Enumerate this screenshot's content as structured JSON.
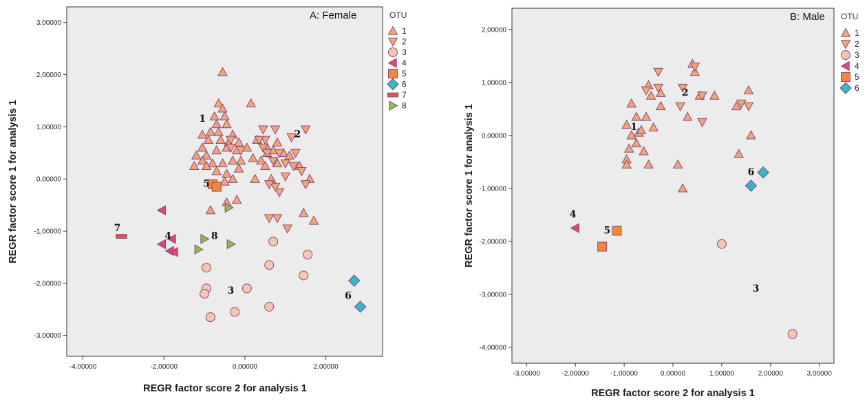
{
  "chart_data": [
    {
      "type": "scatter",
      "title": "A:  Female",
      "xlabel": "REGR factor score  2 for analysis 1",
      "ylabel": "REGR factor score  1 for analysis 1",
      "xlim": [
        -4.4,
        3.4
      ],
      "ylim": [
        -3.4,
        3.3
      ],
      "xticks": [
        "-4,00000",
        "-2,00000",
        "0,00000",
        "2,00000"
      ],
      "xtick_values": [
        -4,
        -2,
        0,
        2
      ],
      "yticks": [
        "3,00000",
        "2,00000",
        "1,00000",
        "0,00000",
        "-1,00000",
        "-2,00000",
        "-3,00000"
      ],
      "ytick_values": [
        3,
        2,
        1,
        0,
        -1,
        -2,
        -3
      ],
      "grid": false,
      "legend_title": "OTU",
      "legend_position": "right",
      "series": [
        {
          "name": "1",
          "marker": "triangle-up",
          "color": "#f0a67a",
          "points": [
            [
              -0.55,
              2.05
            ],
            [
              -0.65,
              1.45
            ],
            [
              -0.55,
              1.35
            ],
            [
              -0.75,
              1.2
            ],
            [
              -0.5,
              1.2
            ],
            [
              -0.7,
              1.05
            ],
            [
              -0.45,
              1.05
            ],
            [
              -1.05,
              0.85
            ],
            [
              -0.85,
              0.9
            ],
            [
              -0.65,
              0.9
            ],
            [
              -0.3,
              0.85
            ],
            [
              -1.05,
              0.6
            ],
            [
              -0.9,
              0.75
            ],
            [
              -0.6,
              0.75
            ],
            [
              -0.4,
              0.7
            ],
            [
              -0.15,
              0.7
            ],
            [
              -1.2,
              0.45
            ],
            [
              -0.95,
              0.45
            ],
            [
              -0.7,
              0.55
            ],
            [
              -0.45,
              0.6
            ],
            [
              -0.2,
              0.55
            ],
            [
              0.05,
              0.6
            ],
            [
              -1.05,
              0.35
            ],
            [
              -0.8,
              0.3
            ],
            [
              -0.55,
              0.3
            ],
            [
              -0.3,
              0.35
            ],
            [
              -0.1,
              0.35
            ],
            [
              0.2,
              0.4
            ],
            [
              -1.25,
              0.25
            ],
            [
              -0.95,
              0.25
            ],
            [
              -0.7,
              0.15
            ],
            [
              -0.45,
              0.1
            ],
            [
              -0.15,
              0.2
            ],
            [
              -0.75,
              -0.1
            ],
            [
              -0.5,
              -0.05
            ],
            [
              -0.3,
              0.0
            ],
            [
              0.15,
              1.45
            ],
            [
              0.3,
              0.75
            ],
            [
              0.55,
              0.6
            ],
            [
              0.4,
              0.35
            ],
            [
              0.7,
              0.55
            ],
            [
              0.95,
              0.5
            ],
            [
              1.1,
              0.45
            ],
            [
              0.25,
              0.0
            ],
            [
              0.5,
              0.25
            ],
            [
              1.35,
              0.25
            ],
            [
              0.8,
              0.3
            ],
            [
              1.6,
              0.0
            ],
            [
              0.65,
              0.0
            ],
            [
              -0.2,
              -0.4
            ],
            [
              -0.45,
              -0.45
            ],
            [
              -0.85,
              -0.6
            ],
            [
              1.45,
              -0.65
            ],
            [
              1.7,
              -0.8
            ],
            [
              0.8,
              0.7
            ],
            [
              0.55,
              0.5
            ]
          ]
        },
        {
          "name": "2",
          "marker": "triangle-down",
          "color": "#f0a67a",
          "points": [
            [
              0.45,
              0.95
            ],
            [
              0.75,
              0.95
            ],
            [
              1.5,
              0.95
            ],
            [
              0.5,
              0.75
            ],
            [
              0.35,
              0.75
            ],
            [
              1.15,
              0.8
            ],
            [
              0.85,
              0.5
            ],
            [
              1.25,
              0.5
            ],
            [
              0.45,
              0.6
            ],
            [
              0.7,
              0.35
            ],
            [
              1.0,
              0.3
            ],
            [
              1.2,
              0.25
            ],
            [
              1.4,
              0.15
            ],
            [
              0.55,
              0.5
            ],
            [
              -0.1,
              0.55
            ],
            [
              -0.35,
              0.75
            ],
            [
              0.85,
              -0.25
            ],
            [
              0.75,
              -0.15
            ],
            [
              1.5,
              -0.1
            ],
            [
              1.0,
              0.05
            ],
            [
              0.6,
              -0.1
            ],
            [
              0.6,
              -0.75
            ],
            [
              0.8,
              -0.75
            ],
            [
              1.05,
              -0.95
            ],
            [
              -0.35,
              0.6
            ]
          ]
        },
        {
          "name": "3",
          "marker": "circle",
          "color": "#f2c7b4",
          "points": [
            [
              0.7,
              -1.2
            ],
            [
              1.55,
              -1.45
            ],
            [
              -0.95,
              -1.7
            ],
            [
              0.6,
              -1.65
            ],
            [
              1.45,
              -1.85
            ],
            [
              -0.95,
              -2.1
            ],
            [
              0.05,
              -2.1
            ],
            [
              -1.0,
              -2.2
            ],
            [
              0.6,
              -2.45
            ],
            [
              -0.25,
              -2.55
            ],
            [
              -0.85,
              -2.65
            ]
          ]
        },
        {
          "name": "4",
          "marker": "triangle-left",
          "color": "#e0457a",
          "points": [
            [
              -2.05,
              -0.6
            ],
            [
              -1.8,
              -1.15
            ],
            [
              -2.05,
              -1.25
            ],
            [
              -1.85,
              -1.38
            ],
            [
              -1.75,
              -1.4
            ]
          ]
        },
        {
          "name": "5",
          "marker": "square",
          "color": "#f5873a",
          "points": [
            [
              -0.8,
              -0.1
            ],
            [
              -0.7,
              -0.15
            ]
          ]
        },
        {
          "name": "6",
          "marker": "diamond",
          "color": "#35b7c8",
          "points": [
            [
              2.7,
              -1.95
            ],
            [
              2.85,
              -2.45
            ]
          ]
        },
        {
          "name": "7",
          "marker": "bar",
          "color": "#e04f5e",
          "points": [
            [
              -3.05,
              -1.1
            ]
          ]
        },
        {
          "name": "8",
          "marker": "triangle-right",
          "color": "#8cbf4a",
          "points": [
            [
              -0.4,
              -0.55
            ],
            [
              -1.0,
              -1.15
            ],
            [
              -0.35,
              -1.25
            ],
            [
              -1.15,
              -1.35
            ]
          ]
        }
      ],
      "annotations": [
        {
          "text": "1",
          "x": -1.05,
          "y": 1.1
        },
        {
          "text": "2",
          "x": 1.3,
          "y": 0.8
        },
        {
          "text": "5",
          "x": -0.95,
          "y": -0.15
        },
        {
          "text": "7",
          "x": -3.15,
          "y": -1.0
        },
        {
          "text": "4",
          "x": -1.9,
          "y": -1.15
        },
        {
          "text": "8",
          "x": -0.75,
          "y": -1.15
        },
        {
          "text": "3",
          "x": -0.35,
          "y": -2.2
        },
        {
          "text": "6",
          "x": 2.55,
          "y": -2.3
        }
      ]
    },
    {
      "type": "scatter",
      "title": "B:  Male",
      "xlabel": "REGR factor score  2 for analysis 1",
      "ylabel": "REGR factor score  1 for analysis 1",
      "xlim": [
        -3.3,
        3.3
      ],
      "ylim": [
        -4.3,
        2.4
      ],
      "xticks": [
        "-3,00000",
        "-2,00000",
        "-1,00000",
        "0,00000",
        "1,00000",
        "2,00000",
        "3,00000"
      ],
      "xtick_values": [
        -3,
        -2,
        -1,
        0,
        1,
        2,
        3
      ],
      "yticks": [
        "2,00000",
        "1,00000",
        "0,00000",
        "-1,00000",
        "-2,00000",
        "-3,00000",
        "-4,00000"
      ],
      "ytick_values": [
        2,
        1,
        0,
        -1,
        -2,
        -3,
        -4
      ],
      "grid": false,
      "legend_title": "OTU",
      "legend_position": "right",
      "series": [
        {
          "name": "1",
          "marker": "triangle-up",
          "color": "#f0a67a",
          "points": [
            [
              0.4,
              1.35
            ],
            [
              0.45,
              1.2
            ],
            [
              -0.5,
              0.95
            ],
            [
              -0.45,
              0.75
            ],
            [
              -0.25,
              0.8
            ],
            [
              -0.85,
              0.6
            ],
            [
              -0.75,
              0.35
            ],
            [
              -0.55,
              0.35
            ],
            [
              -0.4,
              0.15
            ],
            [
              -0.95,
              0.2
            ],
            [
              -0.85,
              0.0
            ],
            [
              -0.7,
              0.05
            ],
            [
              -0.9,
              -0.25
            ],
            [
              -0.75,
              -0.15
            ],
            [
              -0.6,
              -0.3
            ],
            [
              -0.95,
              -0.45
            ],
            [
              -0.95,
              -0.55
            ],
            [
              -0.5,
              -0.55
            ],
            [
              -0.25,
              0.55
            ],
            [
              0.1,
              -0.55
            ],
            [
              0.2,
              -1.0
            ],
            [
              0.3,
              0.35
            ],
            [
              0.55,
              0.75
            ],
            [
              0.85,
              0.75
            ],
            [
              1.3,
              0.55
            ],
            [
              1.55,
              0.85
            ],
            [
              1.35,
              -0.35
            ],
            [
              1.6,
              0.0
            ],
            [
              -0.65,
              0.1
            ]
          ]
        },
        {
          "name": "2",
          "marker": "triangle-down",
          "color": "#f0a67a",
          "points": [
            [
              -0.3,
              1.2
            ],
            [
              -0.55,
              0.85
            ],
            [
              -0.3,
              0.9
            ],
            [
              0.2,
              0.9
            ],
            [
              0.45,
              1.3
            ],
            [
              0.15,
              0.55
            ],
            [
              0.6,
              0.25
            ],
            [
              1.4,
              0.6
            ],
            [
              1.55,
              0.55
            ],
            [
              0.6,
              0.75
            ]
          ]
        },
        {
          "name": "3",
          "marker": "circle",
          "color": "#f2c7b4",
          "points": [
            [
              1.0,
              -2.05
            ],
            [
              2.45,
              -3.75
            ]
          ]
        },
        {
          "name": "4",
          "marker": "triangle-left",
          "color": "#e0457a",
          "points": [
            [
              -2.0,
              -1.75
            ]
          ]
        },
        {
          "name": "5",
          "marker": "square",
          "color": "#f5873a",
          "points": [
            [
              -1.45,
              -2.1
            ],
            [
              -1.15,
              -1.8
            ]
          ]
        },
        {
          "name": "6",
          "marker": "diamond",
          "color": "#35b7c8",
          "points": [
            [
              1.85,
              -0.7
            ],
            [
              1.6,
              -0.95
            ]
          ]
        }
      ],
      "annotations": [
        {
          "text": "1",
          "x": -0.8,
          "y": 0.1
        },
        {
          "text": "2",
          "x": 0.25,
          "y": 0.75
        },
        {
          "text": "6",
          "x": 1.6,
          "y": -0.75
        },
        {
          "text": "4",
          "x": -2.05,
          "y": -1.55
        },
        {
          "text": "5",
          "x": -1.35,
          "y": -1.85
        },
        {
          "text": "3",
          "x": 1.7,
          "y": -2.95
        }
      ]
    }
  ]
}
